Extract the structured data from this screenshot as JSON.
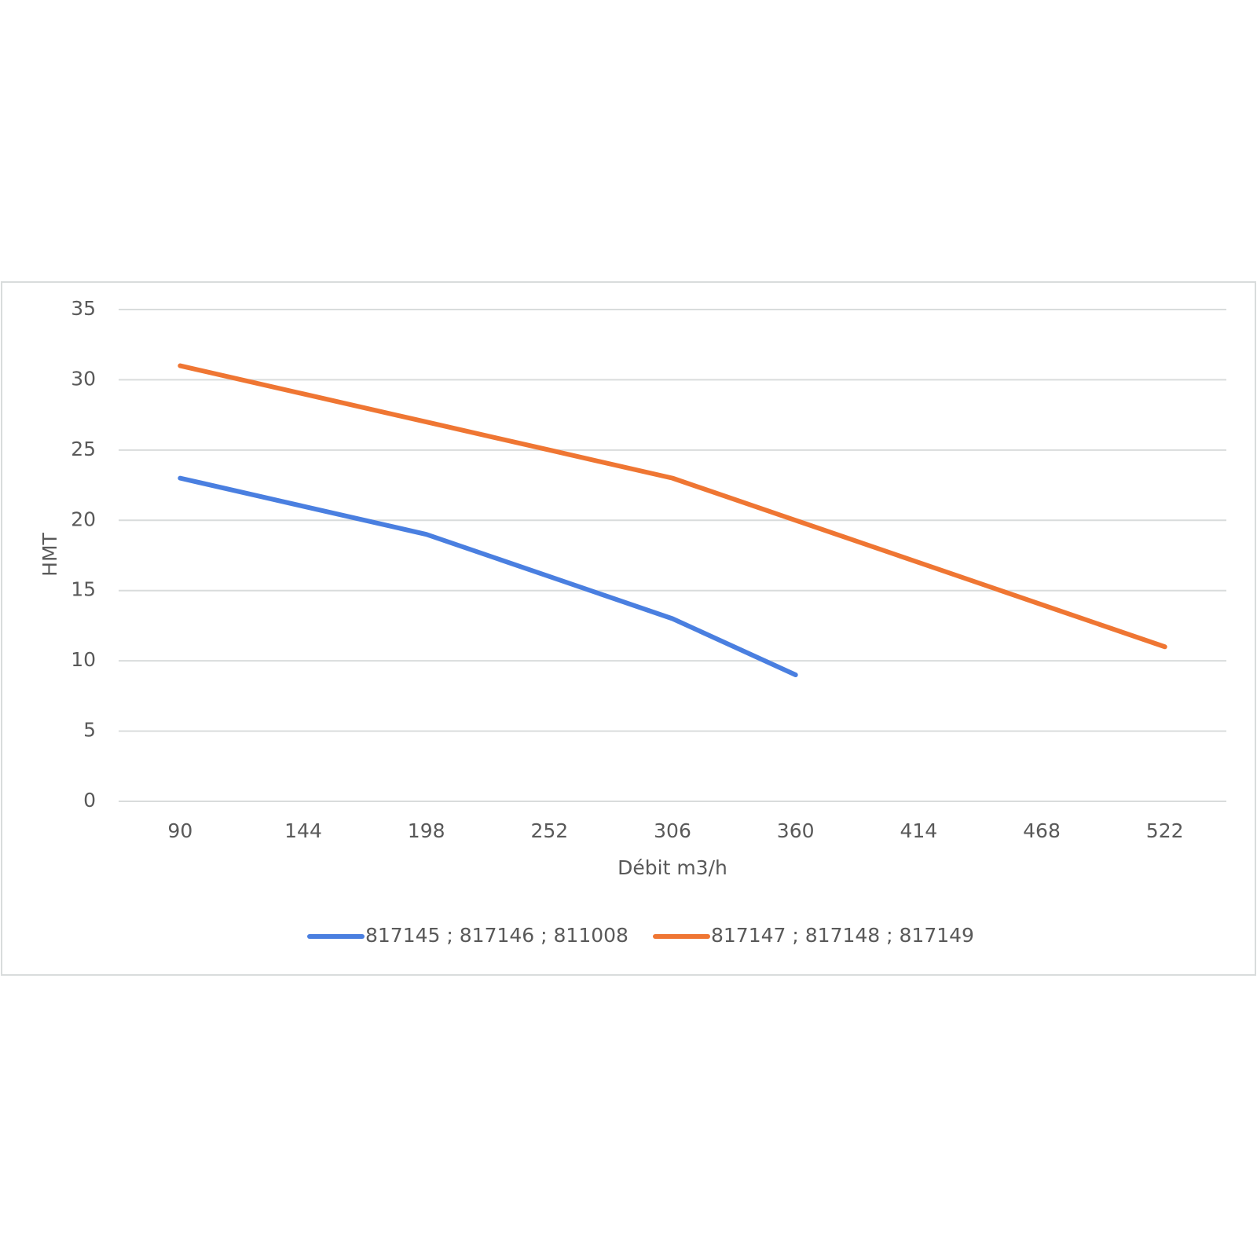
{
  "chart_data": {
    "type": "line",
    "x_label": "Débit m3/h",
    "y_label": "HMT",
    "categories": [
      90,
      144,
      198,
      252,
      306,
      360,
      414,
      468,
      522
    ],
    "series": [
      {
        "name": "817145 ; 817146 ; 811008",
        "color": "#4a7fe0",
        "values": [
          23,
          21,
          19,
          16,
          13,
          9,
          null,
          null,
          null
        ]
      },
      {
        "name": "817147 ; 817148 ; 817149",
        "color": "#ef7633",
        "values": [
          31,
          29,
          27,
          25,
          23,
          20,
          17,
          14,
          11
        ]
      }
    ],
    "ylim": [
      0,
      35
    ],
    "yticks": [
      0,
      5,
      10,
      15,
      20,
      25,
      30,
      35
    ],
    "grid": true,
    "legend": "bottom"
  }
}
